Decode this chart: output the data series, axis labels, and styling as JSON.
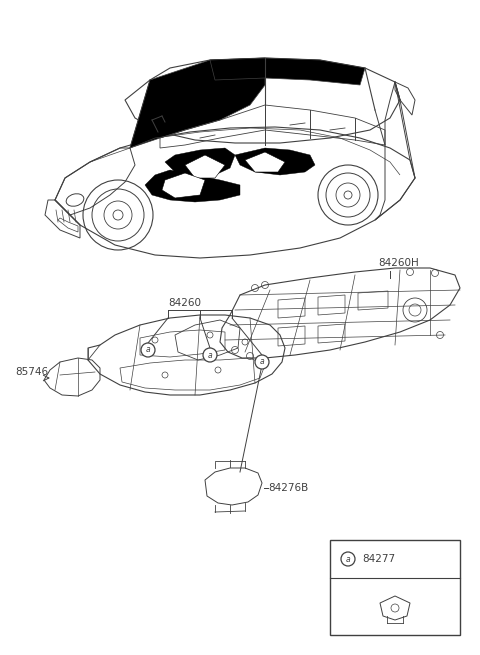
{
  "bg_color": "#ffffff",
  "line_color": "#404040",
  "fig_width": 4.8,
  "fig_height": 6.55,
  "dpi": 100,
  "labels": {
    "84260H": "84260H",
    "84260": "84260",
    "85746": "85746",
    "84276B": "84276B",
    "84277": "84277"
  }
}
